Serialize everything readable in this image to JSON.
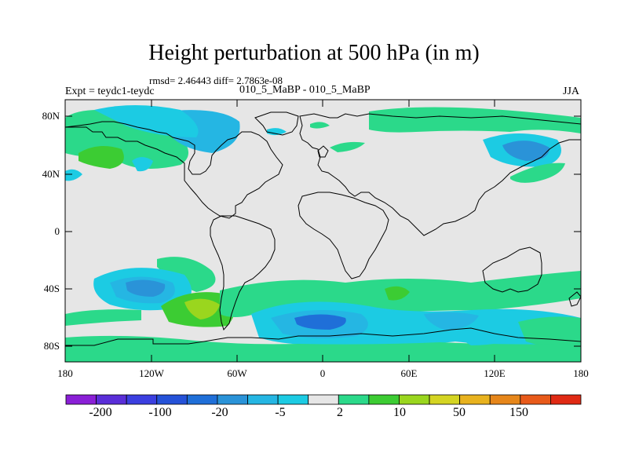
{
  "title": "Height perturbation at 500 hPa (in m)",
  "stats": "rmsd= 2.46443 diff= 2.7863e-08",
  "left_label": "Expt = teydc1-teydc",
  "center_label": "010_5_MaBP - 010_5_MaBP",
  "right_label": "JJA",
  "y_ticks": [
    "80N",
    "40N",
    "0",
    "40S",
    "80S"
  ],
  "x_ticks": [
    "180",
    "120W",
    "60W",
    "0",
    "60E",
    "120E",
    "180"
  ],
  "colorbar": {
    "colors": [
      "#8a1fd6",
      "#5a2ed8",
      "#3b3fe0",
      "#2552d8",
      "#1f6fd8",
      "#2a93d8",
      "#25b6e3",
      "#1ccbe3",
      "#e6e6e6",
      "#2bd98a",
      "#3ccc33",
      "#9ad61e",
      "#d4d422",
      "#e8b21e",
      "#e6861a",
      "#e85a1a",
      "#e02a14"
    ],
    "labels": [
      "-200",
      "-100",
      "-20",
      "-5",
      "2",
      "10",
      "50",
      "150"
    ]
  },
  "colors": {
    "neutral": "#e6e6e6",
    "green": "#2bd98a",
    "lightblue": "#1ccbe3",
    "blue": "#25b6e3",
    "midblue": "#2a93d8",
    "deepblue": "#1f6fd8",
    "yellowgreen": "#9ad61e",
    "yellow": "#d4d422",
    "darkgreen": "#3ccc33"
  }
}
